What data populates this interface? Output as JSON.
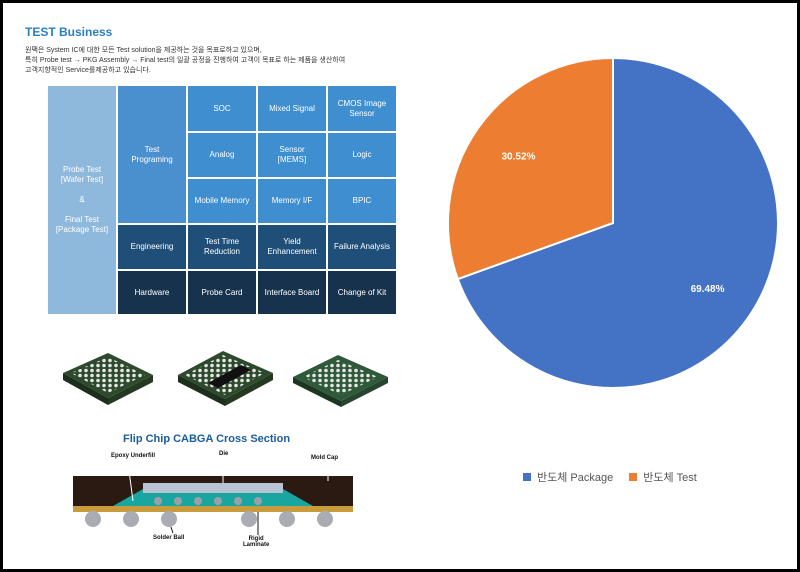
{
  "business": {
    "title": "TEST Business",
    "desc_lines": [
      "원팩은 System IC에 대한 모든 Test solution을 제공하는 것을 목표로하고 있으며,",
      "특히 Probe test → PKG Assembly → Final test의 일괄 공정을 진행하여 고객이 목표로 하는 제품을 생산하여",
      "고객지향적인 Service를제공하고 있습니다."
    ],
    "left_block": "Probe Test\n[Wafer Test]\n\n&\n\nFinal Test\n[Package Test]",
    "test_programing": "Test\nPrograming",
    "grid": [
      [
        "SOC",
        "Mixed Signal",
        "CMOS Image\nSensor"
      ],
      [
        "Analog",
        "Sensor\n[MEMS]",
        "Logic"
      ],
      [
        "Mobile Memory",
        "Memory I/F",
        "BPIC"
      ]
    ],
    "engineering_row": [
      "Engineering",
      "Test Time\nReduction",
      "Yield\nEnhancement",
      "Failure Analysis"
    ],
    "hardware_row": [
      "Hardware",
      "Probe Card",
      "Interface Board",
      "Change of Kit"
    ]
  },
  "cross_section": {
    "title": "Flip Chip CABGA Cross Section",
    "labels": {
      "epoxy": "Epoxy Underfill",
      "die": "Die",
      "mold": "Mold Cap",
      "solder": "Solder Ball",
      "rigid": "Rigid\nLaminate"
    }
  },
  "chart_data": {
    "type": "pie",
    "slices": [
      {
        "name": "반도체 Package",
        "value": 69.48,
        "label": "69.48%",
        "color": "#4472c4"
      },
      {
        "name": "반도체 Test",
        "value": 30.52,
        "label": "30.52%",
        "color": "#ed7d31"
      }
    ],
    "legend_position": "bottom"
  }
}
